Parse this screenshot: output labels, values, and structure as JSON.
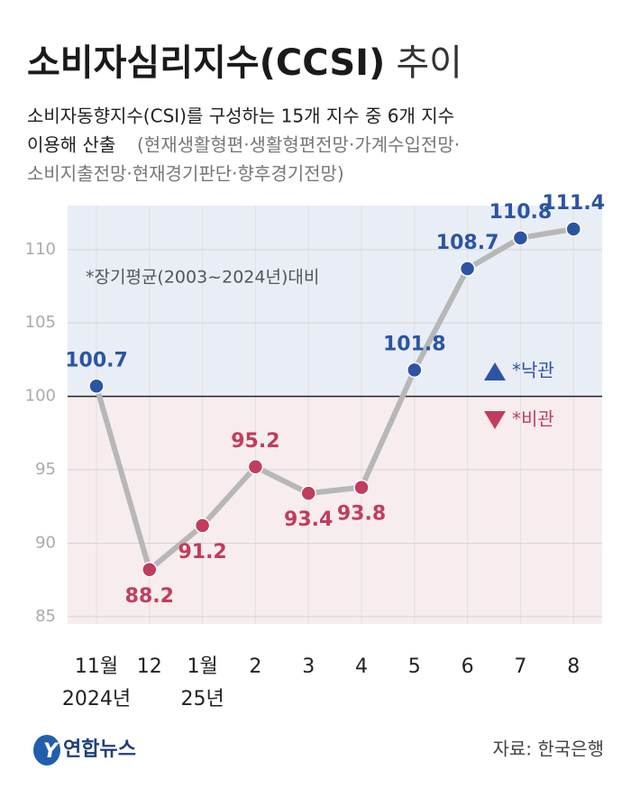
{
  "chart_data": {
    "type": "line",
    "title": "소비자심리지수(CCSI)",
    "title_suffix": "추이",
    "subtitle_lines": [
      "소비자동향지수(CSI)를 구성하는 15개 지수 중 6개 지수",
      "이용해 산출",
      "(현재생활형편·생활형편전망·가계수입전망·",
      "소비지출전망·현재경기판단·향후경기전망)"
    ],
    "annotation": "*장기평균(2003~2024년)대비",
    "categories": [
      "11월",
      "12",
      "1월",
      "2",
      "3",
      "4",
      "5",
      "6",
      "7",
      "8"
    ],
    "x_sublabels": [
      "2024년",
      null,
      "25년",
      null,
      null,
      null,
      null,
      null,
      null,
      null
    ],
    "values": [
      100.7,
      88.2,
      91.2,
      95.2,
      93.4,
      93.8,
      101.8,
      108.7,
      110.8,
      111.4
    ],
    "baseline": 100,
    "line_color": "#b7b7b7",
    "legend": [
      {
        "name": "*낙관",
        "color": "#2b55a3"
      },
      {
        "name": "*비관",
        "color": "#c23c5e"
      }
    ],
    "ylim": [
      84.5,
      113
    ],
    "yticks": [
      85,
      90,
      95,
      100,
      105,
      110
    ],
    "grid": true,
    "source": "자료: 한국은행",
    "logo": "연합뉴스"
  }
}
